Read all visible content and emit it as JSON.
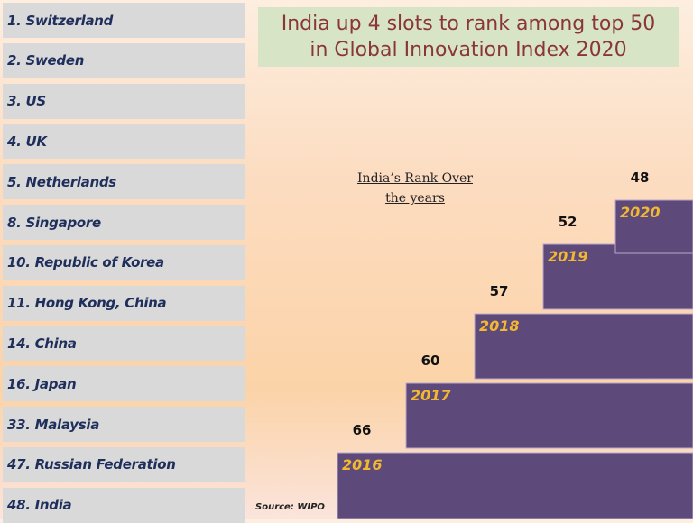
{
  "title_line1": "India up 4 slots to rank among top 50",
  "title_line2": "in Global Innovation Index 2020",
  "rank_list": [
    "1.  Switzerland",
    "2. Sweden",
    "3. US",
    "4. UK",
    "5. Netherlands",
    "8. Singapore",
    "10. Republic of Korea",
    "11. Hong Kong, China",
    "14. China",
    "16. Japan",
    "33. Malaysia",
    "47. Russian Federation",
    "48. India"
  ],
  "source": "Source: WIPO",
  "chart_data": {
    "type": "bar",
    "title_line1": "India’s Rank Over",
    "title_line2": "the years",
    "categories": [
      "2016",
      "2017",
      "2018",
      "2019",
      "2020"
    ],
    "values": [
      66,
      60,
      57,
      52,
      48
    ],
    "bar_color": "#5e4a7a",
    "category_label_color": "#f2b830"
  }
}
